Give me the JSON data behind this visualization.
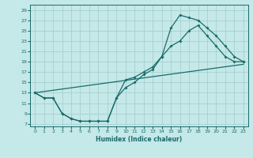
{
  "xlabel": "Humidex (Indice chaleur)",
  "bg_color": "#c5e8e8",
  "grid_color": "#a8d0d0",
  "line_color": "#1a6b6b",
  "xlim": [
    -0.5,
    23.5
  ],
  "ylim": [
    6.5,
    30
  ],
  "yticks": [
    7,
    9,
    11,
    13,
    15,
    17,
    19,
    21,
    23,
    25,
    27,
    29
  ],
  "xticks": [
    0,
    1,
    2,
    3,
    4,
    5,
    6,
    7,
    8,
    9,
    10,
    11,
    12,
    13,
    14,
    15,
    16,
    17,
    18,
    19,
    20,
    21,
    22,
    23
  ],
  "line1_x": [
    0,
    1,
    2,
    3,
    4,
    5,
    6,
    7,
    8,
    9,
    10,
    11,
    12,
    13,
    14,
    15,
    16,
    17,
    18,
    19,
    20,
    21,
    22,
    23
  ],
  "line1_y": [
    13,
    12,
    12,
    9,
    8,
    7.5,
    7.5,
    7.5,
    7.5,
    12,
    15.5,
    16,
    17,
    18,
    20,
    22,
    23,
    25,
    26,
    24,
    22,
    20,
    19,
    19
  ],
  "line2_x": [
    0,
    1,
    2,
    3,
    4,
    5,
    6,
    7,
    8,
    9,
    10,
    11,
    12,
    13,
    14,
    15,
    16,
    17,
    18,
    19,
    20,
    21,
    22,
    23
  ],
  "line2_y": [
    13,
    12,
    12,
    9,
    8,
    7.5,
    7.5,
    7.5,
    7.5,
    12,
    14,
    15,
    16.5,
    17.5,
    20,
    25.5,
    28,
    27.5,
    27,
    25.5,
    24,
    22,
    20,
    19
  ],
  "line3_x": [
    0,
    23
  ],
  "line3_y": [
    13,
    18.5
  ]
}
